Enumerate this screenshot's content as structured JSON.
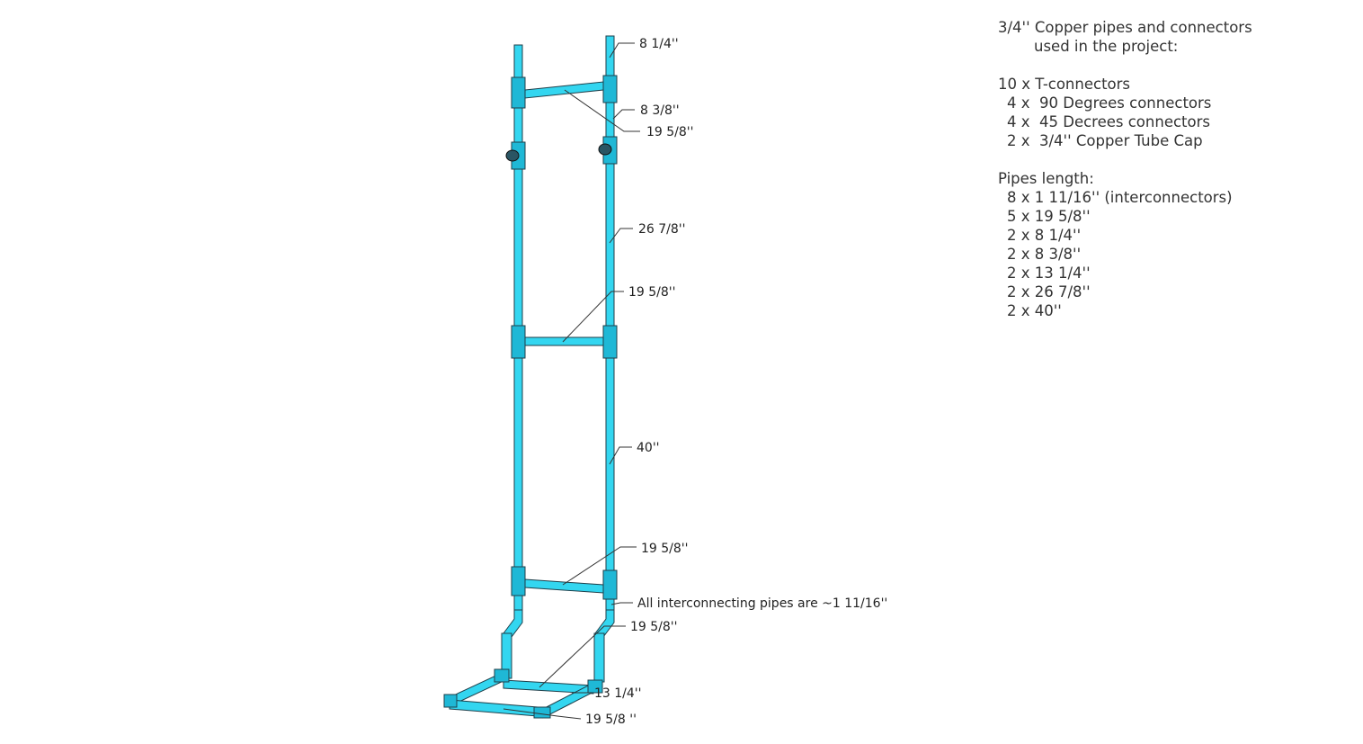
{
  "diagram": {
    "labels": {
      "top_pipe": "8 1/4''",
      "upper_pipe": "8 3/8''",
      "top_rung": "19 5/8''",
      "mid_upper_pipe": "26 7/8''",
      "middle_rung": "19 5/8''",
      "long_pipe": "40''",
      "lower_rung": "19 5/8''",
      "interconnect_note": "All interconnecting pipes are ~1 11/16''",
      "base_rung": "19 5/8''",
      "side_pipe": "13 1/4''",
      "front_rung": "19 5/8 ''"
    }
  },
  "notes": {
    "title_line1": "3/4'' Copper pipes and connectors",
    "title_line2": "used in the project:",
    "connectors": [
      "10 x T-connectors",
      "4 x  90 Degrees connectors",
      "4 x  45 Decrees connectors",
      "2 x  3/4'' Copper Tube Cap"
    ],
    "pipes_heading": "Pipes length:",
    "pipes": [
      "8 x 1 11/16'' (interconnectors)",
      "5 x 19 5/8''",
      "2 x 8 1/4''",
      "2 x 8 3/8''",
      "2 x 13 1/4''",
      "2 x 26 7/8''",
      "2 x 40''"
    ]
  },
  "colors": {
    "pipe": "#33d6f0",
    "pipe_shade": "#1fb8d6",
    "cap": "#2a5563",
    "text": "#333333"
  }
}
